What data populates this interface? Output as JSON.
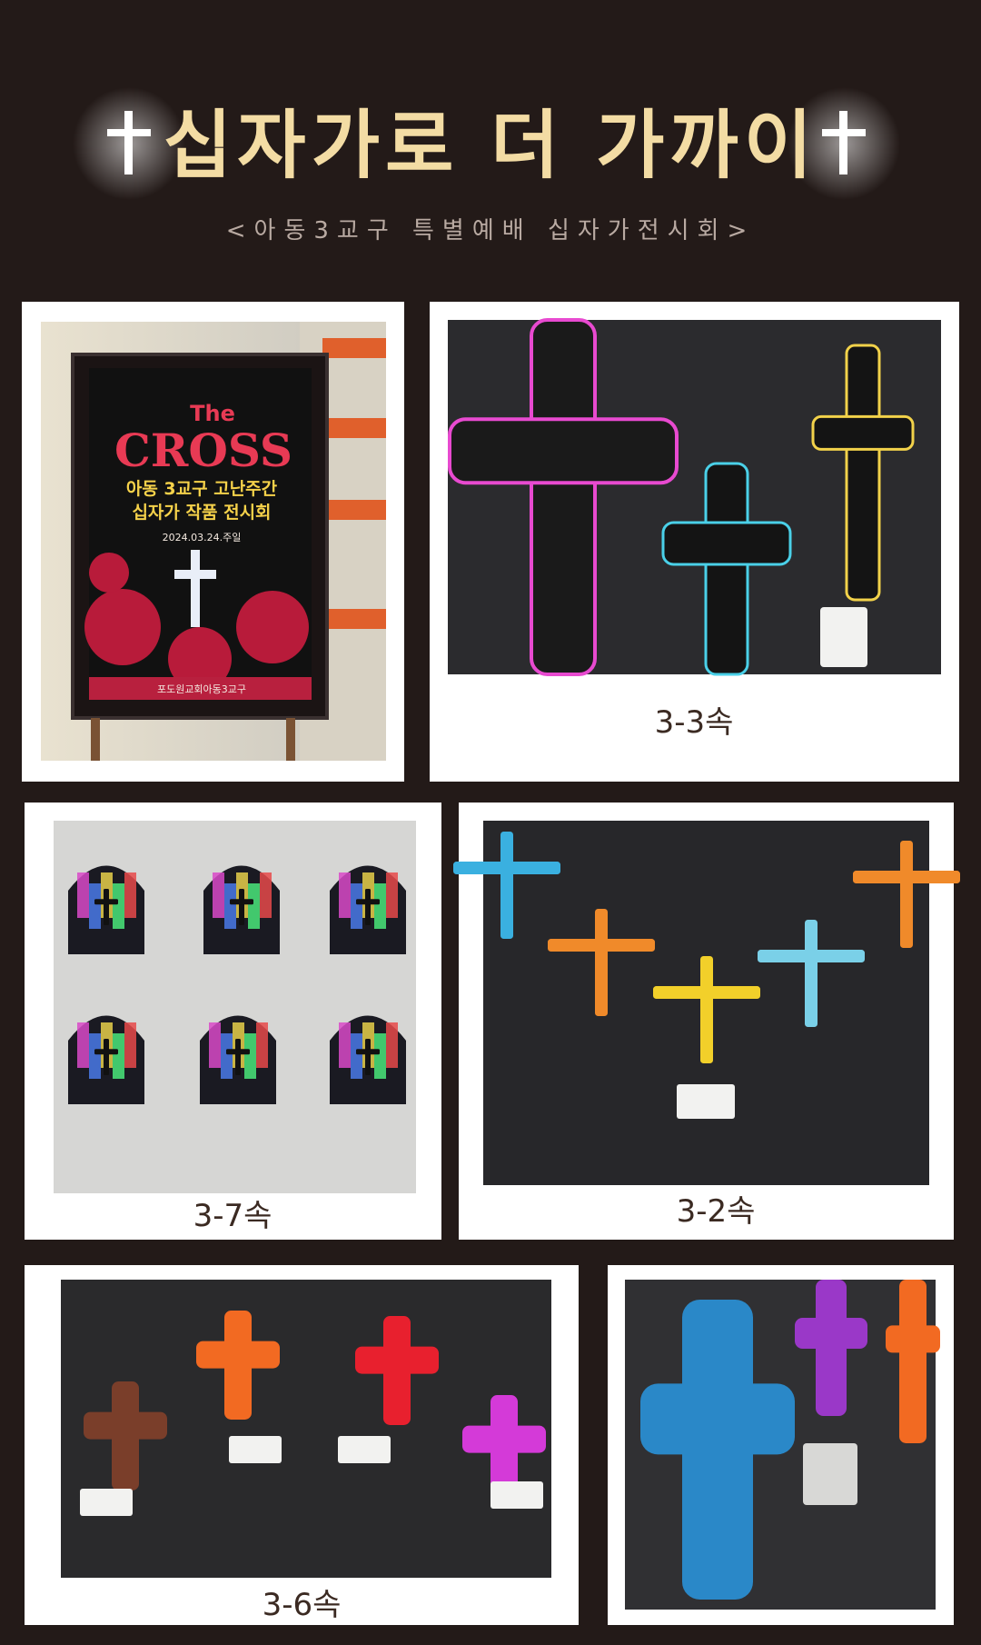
{
  "header": {
    "title": "십자가로 더 가까이",
    "subtitle": "<아동3교구 특별예배 십자가전시회>"
  },
  "poster": {
    "line1": "The",
    "line2": "CROSS",
    "line3": "아동 3교구 고난주간",
    "line4": "십자가 작품 전시회",
    "date": "2024.03.24.주일",
    "footer": "포도원교회아동3교구"
  },
  "photos": [
    {
      "caption": "3-3속"
    },
    {
      "caption": "3-7속"
    },
    {
      "caption": "3-2속"
    },
    {
      "caption": "3-6속"
    }
  ]
}
